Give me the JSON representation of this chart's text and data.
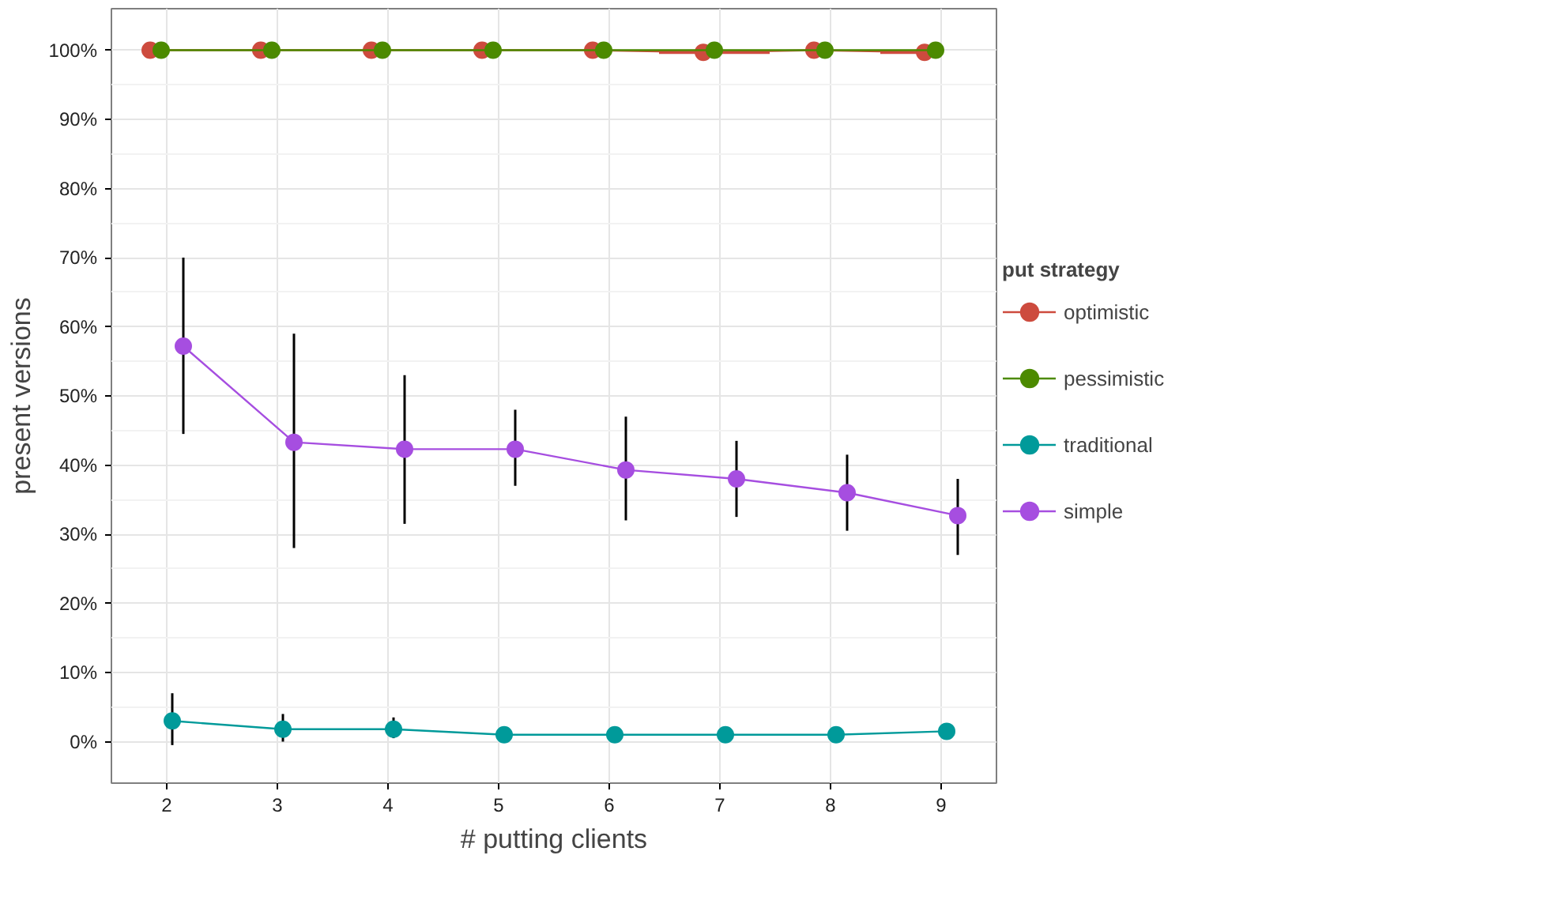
{
  "chart_data": {
    "type": "line",
    "xlabel": "# putting clients",
    "ylabel": "present versions",
    "legend_title": "put strategy",
    "legend": "right",
    "grid": true,
    "marker": "circle",
    "line_style": "solid",
    "xlim": [
      1.5,
      9.5
    ],
    "xticks": [
      2,
      3,
      4,
      5,
      6,
      7,
      8,
      9
    ],
    "ylim": [
      -6,
      106
    ],
    "yticks": [
      {
        "value": 0,
        "label": "0%"
      },
      {
        "value": 10,
        "label": "10%"
      },
      {
        "value": 20,
        "label": "20%"
      },
      {
        "value": 30,
        "label": "30%"
      },
      {
        "value": 40,
        "label": "40%"
      },
      {
        "value": 50,
        "label": "50%"
      },
      {
        "value": 60,
        "label": "60%"
      },
      {
        "value": 70,
        "label": "70%"
      },
      {
        "value": 80,
        "label": "80%"
      },
      {
        "value": 90,
        "label": "90%"
      },
      {
        "value": 100,
        "label": "100%"
      }
    ],
    "series": [
      {
        "name": "optimistic",
        "color": "#cd4b3e",
        "x": [
          1.85,
          2.85,
          3.85,
          4.85,
          5.85,
          6.85,
          7.85,
          8.85
        ],
        "values": [
          100,
          100,
          100,
          100,
          100,
          99.7,
          100,
          99.7
        ],
        "xerrors": [
          null,
          null,
          null,
          null,
          null,
          [
            6.45,
            7.45
          ],
          null,
          [
            8.45,
            8.85
          ]
        ]
      },
      {
        "name": "pessimistic",
        "color": "#4c8a00",
        "x": [
          1.95,
          2.95,
          3.95,
          4.95,
          5.95,
          6.95,
          7.95,
          8.95
        ],
        "values": [
          100,
          100,
          100,
          100,
          100,
          100,
          100,
          100
        ]
      },
      {
        "name": "traditional",
        "color": "#009a9a",
        "x": [
          2.05,
          3.05,
          4.05,
          5.05,
          6.05,
          7.05,
          8.05,
          9.05
        ],
        "values": [
          3,
          1.8,
          1.8,
          1,
          1,
          1,
          1,
          1.5
        ],
        "errors": [
          [
            -0.5,
            7
          ],
          [
            0,
            4
          ],
          [
            0.5,
            3.5
          ],
          null,
          null,
          null,
          null,
          null
        ]
      },
      {
        "name": "simple",
        "color": "#a64ee0",
        "x": [
          2.15,
          3.15,
          4.15,
          5.15,
          6.15,
          7.15,
          8.15,
          9.15
        ],
        "values": [
          57.2,
          43.3,
          42.3,
          42.3,
          39.3,
          38,
          36,
          32.7
        ],
        "errors": [
          [
            44.5,
            70
          ],
          [
            28,
            59
          ],
          [
            31.5,
            53
          ],
          [
            37,
            48
          ],
          [
            32,
            47
          ],
          [
            32.5,
            43.5
          ],
          [
            30.5,
            41.5
          ],
          [
            27,
            38
          ]
        ]
      }
    ]
  }
}
